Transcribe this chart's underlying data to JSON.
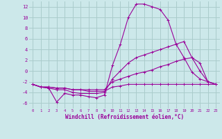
{
  "xlabel": "Windchill (Refroidissement éolien,°C)",
  "bg_color": "#cce8ea",
  "grid_color": "#aacccc",
  "line_color": "#990099",
  "xlim": [
    -0.5,
    23.5
  ],
  "ylim": [
    -7,
    13
  ],
  "yticks": [
    -6,
    -4,
    -2,
    0,
    2,
    4,
    6,
    8,
    10,
    12
  ],
  "xticks": [
    0,
    1,
    2,
    3,
    4,
    5,
    6,
    7,
    8,
    9,
    10,
    11,
    12,
    13,
    14,
    15,
    16,
    17,
    18,
    19,
    20,
    21,
    22,
    23
  ],
  "series": [
    [
      -2.5,
      -3.0,
      -3.2,
      -5.8,
      -4.2,
      -4.5,
      -4.5,
      -4.8,
      -5.0,
      -4.5,
      1.0,
      5.0,
      10.0,
      12.5,
      12.5,
      12.0,
      11.5,
      9.5,
      5.0,
      2.5,
      -0.2,
      -1.5,
      -2.0,
      -2.5
    ],
    [
      -2.5,
      -3.0,
      -3.2,
      -3.5,
      -3.5,
      -4.0,
      -4.2,
      -4.2,
      -4.2,
      -4.0,
      -1.5,
      0.0,
      1.5,
      2.5,
      3.0,
      3.5,
      4.0,
      4.5,
      5.0,
      5.5,
      2.5,
      0.0,
      -2.0,
      -2.5
    ],
    [
      -2.5,
      -3.0,
      -3.0,
      -3.2,
      -3.2,
      -3.5,
      -3.5,
      -3.5,
      -3.5,
      -3.5,
      -2.0,
      -1.5,
      -1.0,
      -0.5,
      -0.2,
      0.2,
      0.8,
      1.2,
      1.8,
      2.2,
      2.5,
      1.5,
      -2.0,
      -2.5
    ],
    [
      -2.5,
      -3.0,
      -3.0,
      -3.2,
      -3.2,
      -3.5,
      -3.5,
      -3.8,
      -3.8,
      -3.8,
      -3.0,
      -2.8,
      -2.5,
      -2.5,
      -2.5,
      -2.5,
      -2.5,
      -2.5,
      -2.5,
      -2.5,
      -2.5,
      -2.5,
      -2.5,
      -2.5
    ]
  ]
}
